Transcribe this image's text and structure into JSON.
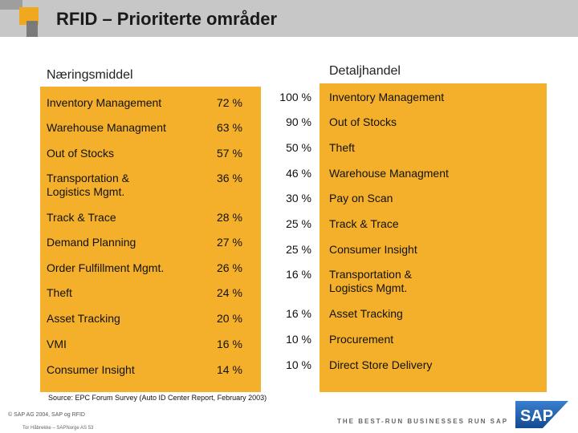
{
  "header": {
    "title": "RFID – Prioriterte områder"
  },
  "left": {
    "title": "Næringsmiddel",
    "rows": [
      {
        "label": "Inventory Management",
        "value": "72 %"
      },
      {
        "label": "Warehouse Managment",
        "value": "63 %"
      },
      {
        "label": "Out of Stocks",
        "value": "57 %"
      },
      {
        "label": "Transportation & Logistics Mgmt.",
        "value": "36 %"
      },
      {
        "label": "Track & Trace",
        "value": "28 %"
      },
      {
        "label": "Demand Planning",
        "value": "27 %"
      },
      {
        "label": "Order Fulfillment Mgmt.",
        "value": "26 %"
      },
      {
        "label": "Theft",
        "value": "24 %"
      },
      {
        "label": "Asset Tracking",
        "value": "20 %"
      },
      {
        "label": "VMI",
        "value": "16 %"
      },
      {
        "label": "Consumer Insight",
        "value": "14 %"
      }
    ]
  },
  "right": {
    "title": "Detaljhandel",
    "rows": [
      {
        "label": "Inventory Management",
        "value": "100 %"
      },
      {
        "label": "Out of Stocks",
        "value": "90 %"
      },
      {
        "label": "Theft",
        "value": "50 %"
      },
      {
        "label": "Warehouse Managment",
        "value": "46 %"
      },
      {
        "label": "Pay on Scan",
        "value": "30 %"
      },
      {
        "label": "Track & Trace",
        "value": "25 %"
      },
      {
        "label": "Consumer Insight",
        "value": "25 %"
      },
      {
        "label": "Transportation & Logistics Mgmt.",
        "value": "16 %"
      },
      {
        "label": "Asset Tracking",
        "value": "16 %"
      },
      {
        "label": "Procurement",
        "value": "10 %"
      },
      {
        "label": "Direct Store Delivery",
        "value": "10 %"
      }
    ]
  },
  "footer": {
    "source": "Source: EPC Forum Survey (Auto ID Center Report, February 2003)",
    "copyright": "© SAP AG 2004, SAP og RFID",
    "author": "Tor Håbrekke – SAPNorge AS 53",
    "tagline": "THE BEST-RUN BUSINESSES RUN SAP",
    "logo_text": "SAP"
  },
  "colors": {
    "panel": "#f4b02a",
    "header": "#c7c7c7",
    "logo_blue": "#1a5aa6"
  }
}
